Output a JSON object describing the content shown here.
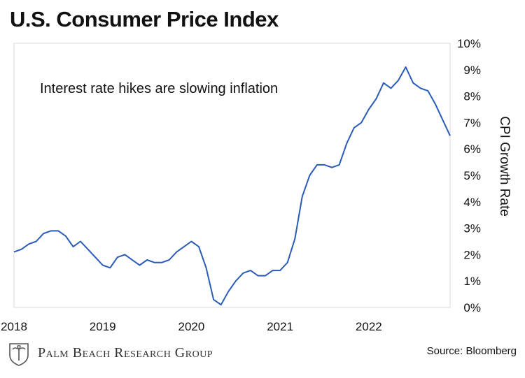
{
  "header": {
    "title": "U.S. Consumer Price Index"
  },
  "footer": {
    "logo_text": "Palm Beach Research Group",
    "source": "Source: Bloomberg"
  },
  "chart_data": {
    "type": "line",
    "title": "U.S. Consumer Price Index",
    "ylabel": "CPI Growth Rate",
    "xlabel": "",
    "annotation": "Interest rate hikes are slowing inflation",
    "ylim": [
      0,
      10
    ],
    "xlim": [
      "2018-01",
      "2022-12"
    ],
    "y_ticks": [
      "0%",
      "1%",
      "2%",
      "3%",
      "4%",
      "5%",
      "6%",
      "7%",
      "8%",
      "9%",
      "10%"
    ],
    "x_ticks": [
      "2018",
      "2019",
      "2020",
      "2021",
      "2022"
    ],
    "grid": false,
    "line_color": "#2a5bb8",
    "series": [
      {
        "x": [
          "2018-01",
          "2018-02",
          "2018-03",
          "2018-04",
          "2018-05",
          "2018-06",
          "2018-07",
          "2018-08",
          "2018-09",
          "2018-10",
          "2018-11",
          "2018-12",
          "2019-01",
          "2019-02",
          "2019-03",
          "2019-04",
          "2019-05",
          "2019-06",
          "2019-07",
          "2019-08",
          "2019-09",
          "2019-10",
          "2019-11",
          "2019-12",
          "2020-01",
          "2020-02",
          "2020-03",
          "2020-04",
          "2020-05",
          "2020-06",
          "2020-07",
          "2020-08",
          "2020-09",
          "2020-10",
          "2020-11",
          "2020-12",
          "2021-01",
          "2021-02",
          "2021-03",
          "2021-04",
          "2021-05",
          "2021-06",
          "2021-07",
          "2021-08",
          "2021-09",
          "2021-10",
          "2021-11",
          "2021-12",
          "2022-01",
          "2022-02",
          "2022-03",
          "2022-04",
          "2022-05",
          "2022-06",
          "2022-07",
          "2022-08",
          "2022-09",
          "2022-10",
          "2022-11",
          "2022-12"
        ],
        "values": [
          2.1,
          2.2,
          2.4,
          2.5,
          2.8,
          2.9,
          2.9,
          2.7,
          2.3,
          2.5,
          2.2,
          1.9,
          1.6,
          1.5,
          1.9,
          2.0,
          1.8,
          1.6,
          1.8,
          1.7,
          1.7,
          1.8,
          2.1,
          2.3,
          2.5,
          2.3,
          1.5,
          0.3,
          0.1,
          0.6,
          1.0,
          1.3,
          1.4,
          1.2,
          1.2,
          1.4,
          1.4,
          1.7,
          2.6,
          4.2,
          5.0,
          5.4,
          5.4,
          5.3,
          5.4,
          6.2,
          6.8,
          7.0,
          7.5,
          7.9,
          8.5,
          8.3,
          8.6,
          9.1,
          8.5,
          8.3,
          8.2,
          7.7,
          7.1,
          6.5
        ]
      }
    ]
  }
}
